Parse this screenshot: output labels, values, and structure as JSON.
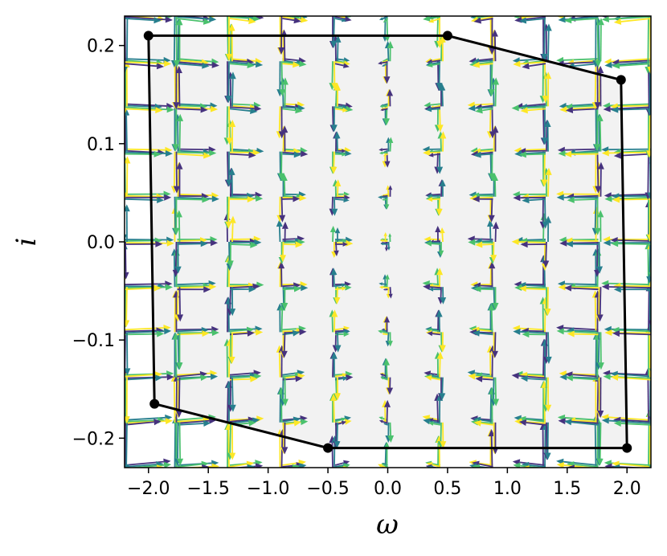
{
  "chart_data": {
    "type": "quiver",
    "xlabel": "ω",
    "ylabel": "i",
    "xlim": [
      -2.2,
      2.2
    ],
    "ylim": [
      -0.23,
      0.23
    ],
    "xticks": [
      -2.0,
      -1.5,
      -1.0,
      -0.5,
      0.0,
      0.5,
      1.0,
      1.5,
      2.0
    ],
    "xtick_labels": [
      "−2.0",
      "−1.5",
      "−1.0",
      "−0.5",
      "0.0",
      "0.5",
      "1.0",
      "1.5",
      "2.0"
    ],
    "yticks": [
      -0.2,
      -0.1,
      0.0,
      0.1,
      0.2
    ],
    "ytick_labels": [
      "−0.2",
      "−0.1",
      "0.0",
      "0.1",
      "0.2"
    ],
    "grid": false,
    "region": {
      "fill": "#f2f2f2",
      "edge": "#000000",
      "vertices": [
        {
          "x": -2.0,
          "y": 0.21
        },
        {
          "x": 0.5,
          "y": 0.21
        },
        {
          "x": 1.95,
          "y": 0.165
        },
        {
          "x": 2.0,
          "y": -0.21
        },
        {
          "x": -0.5,
          "y": -0.21
        },
        {
          "x": -1.95,
          "y": -0.165
        }
      ]
    },
    "field": {
      "x_grid": [
        -2.2,
        -1.76,
        -1.32,
        -0.88,
        -0.44,
        0.0,
        0.44,
        0.88,
        1.32,
        1.76,
        2.2
      ],
      "y_grid": [
        -0.23,
        -0.184,
        -0.138,
        -0.092,
        -0.046,
        0.0,
        0.046,
        0.092,
        0.138,
        0.184,
        0.23
      ],
      "colormap": [
        "#46327e",
        "#277f8e",
        "#4ac16d",
        "#fde725"
      ]
    }
  }
}
